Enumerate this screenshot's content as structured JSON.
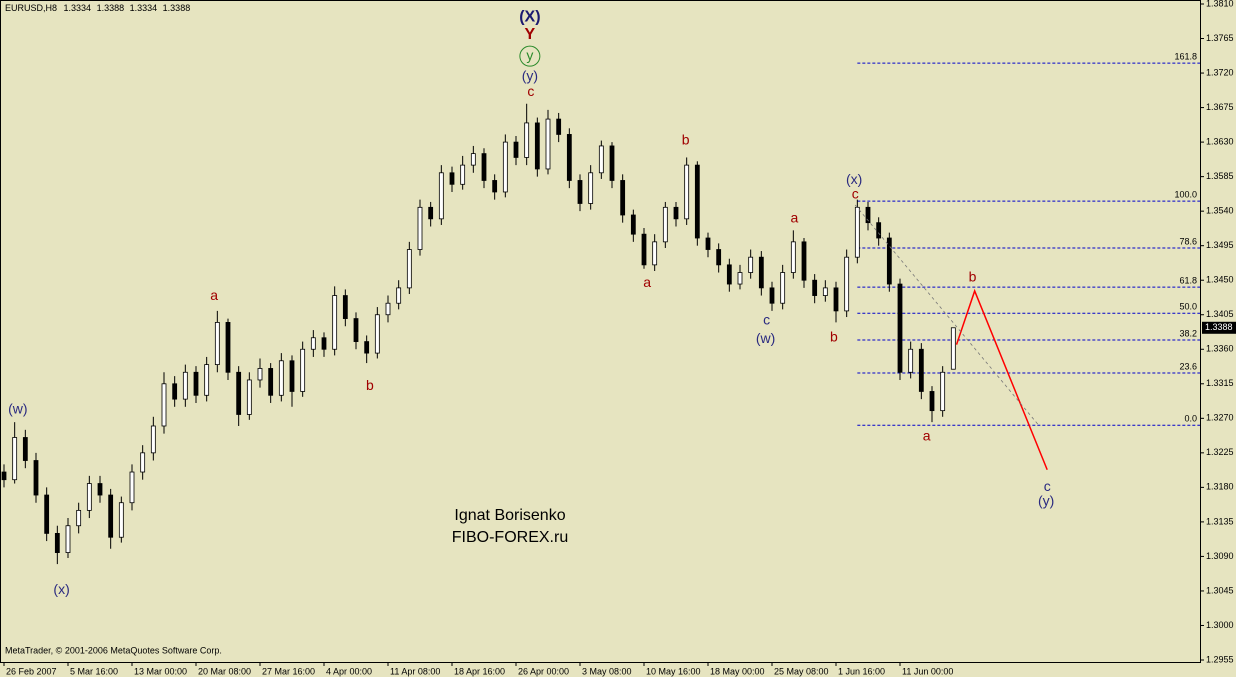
{
  "chart_data": {
    "type": "candlestick",
    "symbol": "EURUSD,H8",
    "copyright": "MetaTrader, © 2001-2006 MetaQuotes Software Corp.",
    "watermark": [
      "Ignat Borisenko",
      "FIBO-FOREX.ru"
    ],
    "background": "#e6e4c0",
    "bull_color": "#ffffff",
    "bear_color": "#000000",
    "ylim": [
      1.2955,
      1.381
    ],
    "yticks": [
      {
        "value": 1.381,
        "label": "1.3810"
      },
      1.3765,
      {
        "value": 1.372,
        "label": "1.3720"
      },
      1.3675,
      {
        "value": 1.363,
        "label": "1.3630"
      },
      1.3585,
      {
        "value": 1.354,
        "label": "1.3540"
      },
      1.3495,
      {
        "value": 1.345,
        "label": "1.3450"
      },
      1.3405,
      {
        "value": 1.336,
        "label": "1.3360"
      },
      1.3315,
      {
        "value": 1.327,
        "label": "1.3270"
      },
      1.3225,
      {
        "value": 1.318,
        "label": "1.3180"
      },
      1.3135,
      {
        "value": 1.309,
        "label": "1.3090"
      },
      1.3045,
      {
        "value": 1.3,
        "label": "1.3000"
      },
      1.2955
    ],
    "categories": [
      "26 Feb 2007",
      null,
      null,
      null,
      null,
      null,
      "5 Mar 16:00",
      null,
      null,
      null,
      null,
      null,
      "13 Mar 00:00",
      null,
      null,
      null,
      null,
      null,
      "20 Mar 08:00",
      null,
      null,
      null,
      null,
      null,
      "27 Mar 16:00",
      null,
      null,
      null,
      null,
      null,
      "4 Apr 00:00",
      null,
      null,
      null,
      null,
      null,
      "11 Apr 08:00",
      null,
      null,
      null,
      null,
      null,
      "18 Apr 16:00",
      null,
      null,
      null,
      null,
      null,
      "26 Apr 00:00",
      null,
      null,
      null,
      null,
      null,
      "3 May 08:00",
      null,
      null,
      null,
      null,
      null,
      "10 May 16:00",
      null,
      null,
      null,
      null,
      null,
      "18 May 00:00",
      null,
      null,
      null,
      null,
      null,
      "25 May 08:00",
      null,
      null,
      null,
      null,
      null,
      "1 Jun 16:00",
      null,
      null,
      null,
      null,
      null,
      "11 Jun 00:00",
      null,
      null,
      null,
      null,
      null
    ],
    "candles": {
      "open": [
        1.32,
        1.319,
        1.3245,
        1.3215,
        1.317,
        1.312,
        1.3095,
        1.313,
        1.315,
        1.3185,
        1.317,
        1.3115,
        1.316,
        1.32,
        1.3225,
        1.326,
        1.3315,
        1.3295,
        1.333,
        1.33,
        1.334,
        1.3395,
        1.333,
        1.3275,
        1.332,
        1.3335,
        1.33,
        1.3345,
        1.3305,
        1.336,
        1.3375,
        1.336,
        1.343,
        1.34,
        1.337,
        1.3355,
        1.3405,
        1.342,
        1.344,
        1.349,
        1.3545,
        1.353,
        1.359,
        1.3575,
        1.36,
        1.3615,
        1.358,
        1.3565,
        1.363,
        1.361,
        1.3655,
        1.3595,
        1.366,
        1.364,
        1.358,
        1.355,
        1.359,
        1.3625,
        1.358,
        1.3535,
        1.351,
        1.347,
        1.35,
        1.3545,
        1.353,
        1.36,
        1.3505,
        1.349,
        1.347,
        1.3445,
        1.346,
        1.348,
        1.344,
        1.342,
        1.346,
        1.35,
        1.345,
        1.343,
        1.344,
        1.341,
        1.348,
        1.3545,
        1.3525,
        1.3505,
        1.3445,
        1.333,
        1.336,
        1.3305,
        1.328,
        1.3334
      ],
      "high": [
        1.321,
        1.3265,
        1.3255,
        1.3225,
        1.318,
        1.313,
        1.314,
        1.316,
        1.3195,
        1.3195,
        1.3178,
        1.3168,
        1.321,
        1.3235,
        1.3272,
        1.333,
        1.3325,
        1.334,
        1.3338,
        1.335,
        1.341,
        1.34,
        1.3338,
        1.333,
        1.3348,
        1.3342,
        1.3355,
        1.3352,
        1.337,
        1.3385,
        1.3382,
        1.3442,
        1.3438,
        1.3408,
        1.3378,
        1.3415,
        1.343,
        1.345,
        1.35,
        1.3555,
        1.3552,
        1.36,
        1.3598,
        1.3612,
        1.3625,
        1.3622,
        1.3588,
        1.364,
        1.3638,
        1.368,
        1.3662,
        1.3672,
        1.3668,
        1.3648,
        1.3588,
        1.36,
        1.3632,
        1.363,
        1.3588,
        1.3542,
        1.3518,
        1.351,
        1.3552,
        1.3552,
        1.361,
        1.3605,
        1.3512,
        1.3498,
        1.3478,
        1.347,
        1.349,
        1.3488,
        1.3448,
        1.347,
        1.3515,
        1.3505,
        1.3458,
        1.345,
        1.3448,
        1.349,
        1.3555,
        1.3552,
        1.3532,
        1.3512,
        1.3452,
        1.337,
        1.3368,
        1.3312,
        1.3338,
        1.3388
      ],
      "low": [
        1.318,
        1.3185,
        1.3205,
        1.316,
        1.311,
        1.308,
        1.3088,
        1.312,
        1.314,
        1.316,
        1.31,
        1.3108,
        1.315,
        1.319,
        1.3215,
        1.325,
        1.3285,
        1.3285,
        1.329,
        1.3292,
        1.333,
        1.332,
        1.326,
        1.3268,
        1.331,
        1.329,
        1.3292,
        1.3285,
        1.3298,
        1.335,
        1.335,
        1.3352,
        1.339,
        1.336,
        1.3342,
        1.3348,
        1.3395,
        1.3412,
        1.3432,
        1.3482,
        1.352,
        1.3522,
        1.3565,
        1.3568,
        1.359,
        1.357,
        1.3555,
        1.3558,
        1.36,
        1.36,
        1.3585,
        1.3588,
        1.363,
        1.357,
        1.354,
        1.3542,
        1.3582,
        1.357,
        1.3525,
        1.35,
        1.3465,
        1.3462,
        1.3492,
        1.352,
        1.3522,
        1.3495,
        1.348,
        1.346,
        1.3435,
        1.3438,
        1.3452,
        1.343,
        1.341,
        1.3412,
        1.3452,
        1.344,
        1.342,
        1.3422,
        1.3395,
        1.3402,
        1.3472,
        1.3515,
        1.3495,
        1.3435,
        1.332,
        1.3322,
        1.3295,
        1.3265,
        1.3272,
        1.3334
      ],
      "close": [
        1.319,
        1.3245,
        1.3215,
        1.317,
        1.312,
        1.3095,
        1.313,
        1.315,
        1.3185,
        1.317,
        1.3115,
        1.316,
        1.32,
        1.3225,
        1.326,
        1.3315,
        1.3295,
        1.333,
        1.33,
        1.334,
        1.3395,
        1.333,
        1.3275,
        1.332,
        1.3335,
        1.33,
        1.3345,
        1.3305,
        1.336,
        1.3375,
        1.336,
        1.343,
        1.34,
        1.337,
        1.3355,
        1.3405,
        1.342,
        1.344,
        1.349,
        1.3545,
        1.353,
        1.359,
        1.3575,
        1.36,
        1.3615,
        1.358,
        1.3565,
        1.363,
        1.361,
        1.3655,
        1.3595,
        1.366,
        1.364,
        1.358,
        1.355,
        1.359,
        1.3625,
        1.358,
        1.3535,
        1.351,
        1.347,
        1.35,
        1.3545,
        1.353,
        1.36,
        1.3505,
        1.349,
        1.347,
        1.3445,
        1.346,
        1.348,
        1.344,
        1.342,
        1.346,
        1.35,
        1.345,
        1.343,
        1.344,
        1.341,
        1.348,
        1.3545,
        1.3525,
        1.3505,
        1.3445,
        1.333,
        1.336,
        1.3305,
        1.328,
        1.333,
        1.3388
      ]
    },
    "fibonacci": {
      "from": 80,
      "color": "#0000cc",
      "levels": [
        {
          "price": 1.3733,
          "label": "161.8"
        },
        {
          "price": 1.3553,
          "label": "100.0"
        },
        {
          "price": 1.3492,
          "label": "78.6"
        },
        {
          "price": 1.3441,
          "label": "61.8"
        },
        {
          "price": 1.3407,
          "label": "50.0"
        },
        {
          "price": 1.3372,
          "label": "38.2"
        },
        {
          "price": 1.3329,
          "label": "23.6"
        },
        {
          "price": 1.3261,
          "label": "0.0"
        }
      ]
    },
    "drawings": [
      {
        "color": "#ff0000",
        "dashed": false,
        "x": [
          89.3,
          91,
          97.8
        ],
        "y": [
          1.3366,
          1.3436,
          1.3203
        ]
      },
      {
        "color": "#777777",
        "dashed": true,
        "x": [
          79.8,
          97
        ],
        "y": [
          1.3548,
          1.3261
        ]
      }
    ],
    "annotations": [
      {
        "text": "(w)",
        "x": 1.3,
        "y": 1.3281,
        "color": "#2a2a80"
      },
      {
        "text": "(x)",
        "x": 5.4,
        "y": 1.3046,
        "color": "#2a2a80"
      },
      {
        "text": "a",
        "x": 19.7,
        "y": 1.3429,
        "color": "#a00000"
      },
      {
        "text": "b",
        "x": 34.3,
        "y": 1.3312,
        "color": "#a00000"
      },
      {
        "text": "(X)",
        "x": 49.3,
        "y": 1.3793,
        "color": "#1a1a70",
        "bold": true
      },
      {
        "text": "Y",
        "x": 49.3,
        "y": 1.377,
        "color": "#a00000",
        "bold": true
      },
      {
        "text": "y",
        "x": 49.3,
        "y": 1.3742,
        "color": "#2a8a2a",
        "circled": true
      },
      {
        "text": "(y)",
        "x": 49.3,
        "y": 1.3715,
        "color": "#2a2a80"
      },
      {
        "text": "c",
        "x": 49.4,
        "y": 1.3695,
        "color": "#a00000"
      },
      {
        "text": "a",
        "x": 60.3,
        "y": 1.3446,
        "color": "#a00000"
      },
      {
        "text": "b",
        "x": 63.9,
        "y": 1.3632,
        "color": "#a00000"
      },
      {
        "text": "a",
        "x": 74.1,
        "y": 1.353,
        "color": "#a00000"
      },
      {
        "text": "c",
        "x": 71.5,
        "y": 1.3397,
        "color": "#2a2a80"
      },
      {
        "text": "(w)",
        "x": 71.4,
        "y": 1.3373,
        "color": "#2a2a80"
      },
      {
        "text": "b",
        "x": 77.8,
        "y": 1.3375,
        "color": "#a00000"
      },
      {
        "text": "(x)",
        "x": 79.7,
        "y": 1.358,
        "color": "#2a2a80"
      },
      {
        "text": "c",
        "x": 79.8,
        "y": 1.3561,
        "color": "#a00000"
      },
      {
        "text": "a",
        "x": 86.5,
        "y": 1.3246,
        "color": "#a00000"
      },
      {
        "text": "b",
        "x": 90.8,
        "y": 1.3453,
        "color": "#a00000"
      },
      {
        "text": "c",
        "x": 97.8,
        "y": 1.318,
        "color": "#2a2a80"
      },
      {
        "text": "(y)",
        "x": 97.7,
        "y": 1.3161,
        "color": "#2a2a80"
      }
    ]
  }
}
